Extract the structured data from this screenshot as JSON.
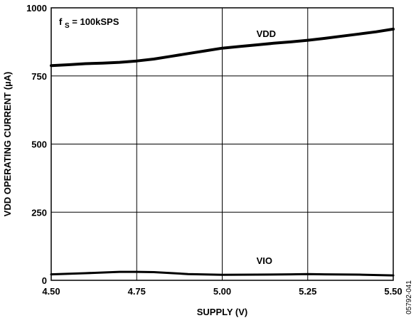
{
  "chart_data": {
    "type": "line",
    "xlabel": "SUPPLY (V)",
    "ylabel": "VDD OPERATING CURRENT (µA)",
    "xlim": [
      4.5,
      5.5
    ],
    "ylim": [
      0,
      1000
    ],
    "x_ticks": [
      "4.50",
      "4.75",
      "5.00",
      "5.25",
      "5.50"
    ],
    "y_ticks": [
      "0",
      "250",
      "500",
      "750",
      "1000"
    ],
    "grid": true,
    "annotation": {
      "main": "f",
      "subscript": "S",
      "rest": " = 100kSPS"
    },
    "figure_code": "05792-041",
    "series": [
      {
        "name": "VDD",
        "x": [
          4.5,
          4.55,
          4.6,
          4.65,
          4.7,
          4.75,
          4.8,
          4.85,
          4.9,
          4.95,
          5.0,
          5.05,
          5.1,
          5.15,
          5.2,
          5.25,
          5.3,
          5.35,
          5.4,
          5.45,
          5.5
        ],
        "y": [
          788,
          791,
          795,
          797,
          800,
          805,
          812,
          822,
          832,
          842,
          852,
          858,
          864,
          870,
          875,
          881,
          888,
          896,
          904,
          912,
          922
        ]
      },
      {
        "name": "VIO",
        "x": [
          4.5,
          4.6,
          4.7,
          4.75,
          4.8,
          4.9,
          5.0,
          5.1,
          5.2,
          5.25,
          5.3,
          5.4,
          5.5
        ],
        "y": [
          22,
          26,
          31,
          31,
          30,
          23,
          20,
          21,
          22,
          23,
          22,
          21,
          18
        ]
      }
    ]
  }
}
